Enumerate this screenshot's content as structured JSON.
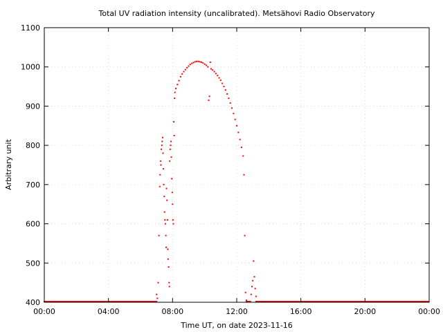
{
  "chart_data": {
    "type": "scatter",
    "title": "Total UV radiation intensity (uncalibrated). Metsähovi Radio Observatory",
    "xlabel": "Time UT, on date 2023-11-16",
    "ylabel": "Arbitrary unit",
    "xlim": [
      "00:00",
      "00:00"
    ],
    "xlim_hours": [
      0,
      24
    ],
    "ylim": [
      400,
      1100
    ],
    "x_ticks": [
      "00:00",
      "04:00",
      "08:00",
      "12:00",
      "16:00",
      "20:00",
      "00:00"
    ],
    "y_ticks": [
      "400",
      "500",
      "600",
      "700",
      "800",
      "900",
      "1000",
      "1100"
    ],
    "grid": true,
    "marker_color": "#ff0000",
    "series": [
      {
        "points": [
          [
            7.0,
            420
          ],
          [
            7.05,
            410
          ],
          [
            7.1,
            450
          ],
          [
            7.15,
            570
          ],
          [
            7.2,
            695
          ],
          [
            7.22,
            725
          ],
          [
            7.25,
            760
          ],
          [
            7.27,
            750
          ],
          [
            7.3,
            790
          ],
          [
            7.33,
            800
          ],
          [
            7.35,
            810
          ],
          [
            7.38,
            820
          ],
          [
            7.4,
            780
          ],
          [
            7.42,
            740
          ],
          [
            7.45,
            700
          ],
          [
            7.48,
            670
          ],
          [
            7.5,
            630
          ],
          [
            7.52,
            610
          ],
          [
            7.55,
            600
          ],
          [
            7.58,
            570
          ],
          [
            7.6,
            540
          ],
          [
            7.62,
            690
          ],
          [
            7.65,
            660
          ],
          [
            7.68,
            610
          ],
          [
            7.7,
            535
          ],
          [
            7.72,
            510
          ],
          [
            7.75,
            490
          ],
          [
            7.78,
            450
          ],
          [
            7.8,
            440
          ],
          [
            7.82,
            760
          ],
          [
            7.85,
            790
          ],
          [
            7.88,
            800
          ],
          [
            7.9,
            810
          ],
          [
            7.92,
            770
          ],
          [
            7.95,
            715
          ],
          [
            7.98,
            680
          ],
          [
            8.0,
            650
          ],
          [
            8.02,
            610
          ],
          [
            8.05,
            600
          ],
          [
            8.08,
            860
          ],
          [
            8.1,
            825
          ],
          [
            8.12,
            920
          ],
          [
            8.15,
            935
          ],
          [
            8.2,
            945
          ],
          [
            8.3,
            955
          ],
          [
            8.4,
            965
          ],
          [
            8.5,
            975
          ],
          [
            8.6,
            982
          ],
          [
            8.7,
            988
          ],
          [
            8.8,
            993
          ],
          [
            8.9,
            998
          ],
          [
            9.0,
            1002
          ],
          [
            9.1,
            1006
          ],
          [
            9.2,
            1009
          ],
          [
            9.3,
            1011
          ],
          [
            9.4,
            1013
          ],
          [
            9.5,
            1014
          ],
          [
            9.6,
            1014
          ],
          [
            9.7,
            1013
          ],
          [
            9.8,
            1012
          ],
          [
            9.9,
            1010
          ],
          [
            10.0,
            1007
          ],
          [
            10.1,
            1004
          ],
          [
            10.2,
            1000
          ],
          [
            10.25,
            915
          ],
          [
            10.3,
            925
          ],
          [
            10.35,
            1012
          ],
          [
            10.4,
            995
          ],
          [
            10.5,
            992
          ],
          [
            10.6,
            988
          ],
          [
            10.7,
            983
          ],
          [
            10.8,
            978
          ],
          [
            10.9,
            972
          ],
          [
            11.0,
            966
          ],
          [
            11.1,
            958
          ],
          [
            11.2,
            950
          ],
          [
            11.3,
            941
          ],
          [
            11.4,
            931
          ],
          [
            11.5,
            920
          ],
          [
            11.6,
            908
          ],
          [
            11.7,
            895
          ],
          [
            11.8,
            881
          ],
          [
            11.9,
            866
          ],
          [
            12.0,
            850
          ],
          [
            12.1,
            833
          ],
          [
            12.2,
            815
          ],
          [
            12.3,
            795
          ],
          [
            12.4,
            773
          ],
          [
            12.45,
            725
          ],
          [
            12.5,
            570
          ],
          [
            12.55,
            425
          ],
          [
            12.6,
            405
          ],
          [
            12.9,
            420
          ],
          [
            12.95,
            440
          ],
          [
            13.0,
            455
          ],
          [
            13.05,
            505
          ],
          [
            13.1,
            465
          ],
          [
            13.15,
            435
          ],
          [
            13.2,
            415
          ]
        ]
      }
    ]
  }
}
